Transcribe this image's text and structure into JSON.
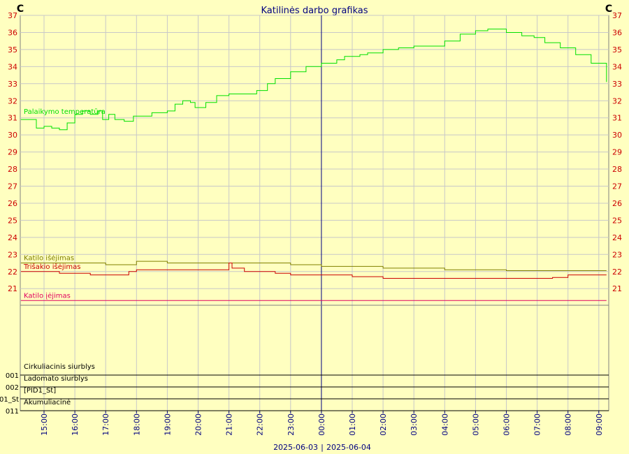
{
  "chart_data": {
    "type": "line",
    "title": "Katilinės darbo grafikas",
    "y_unit_left": "C",
    "y_unit_right": "C",
    "ylim": [
      20.2,
      37
    ],
    "y_ticks": [
      21,
      22,
      23,
      24,
      25,
      26,
      27,
      28,
      29,
      30,
      31,
      32,
      33,
      34,
      35,
      36,
      37
    ],
    "x_ticks": [
      "15:00",
      "16:00",
      "17:00",
      "18:00",
      "19:00",
      "20:00",
      "21:00",
      "22:00",
      "23:00",
      "00:00",
      "01:00",
      "02:00",
      "03:00",
      "04:00",
      "05:00",
      "06:00",
      "07:00",
      "08:00",
      "09:00"
    ],
    "x_range_hours": [
      14.25,
      33.25
    ],
    "date_left": "2025-06-03",
    "date_right": "2025-06-04",
    "grid": true,
    "series": [
      {
        "name": "Palaikymo temperatūra",
        "color": "#00e000",
        "points": [
          [
            14.25,
            30.9
          ],
          [
            14.5,
            30.9
          ],
          [
            14.75,
            30.4
          ],
          [
            15.0,
            30.5
          ],
          [
            15.25,
            30.4
          ],
          [
            15.5,
            30.3
          ],
          [
            15.75,
            30.7
          ],
          [
            16.0,
            31.2
          ],
          [
            16.25,
            31.4
          ],
          [
            16.5,
            31.2
          ],
          [
            16.75,
            31.4
          ],
          [
            16.9,
            30.9
          ],
          [
            17.1,
            31.2
          ],
          [
            17.3,
            30.9
          ],
          [
            17.6,
            30.8
          ],
          [
            17.9,
            31.1
          ],
          [
            18.25,
            31.1
          ],
          [
            18.5,
            31.3
          ],
          [
            19.0,
            31.4
          ],
          [
            19.25,
            31.8
          ],
          [
            19.5,
            32.0
          ],
          [
            19.75,
            31.9
          ],
          [
            19.9,
            31.6
          ],
          [
            20.25,
            31.9
          ],
          [
            20.6,
            32.3
          ],
          [
            21.0,
            32.4
          ],
          [
            21.5,
            32.4
          ],
          [
            21.9,
            32.6
          ],
          [
            22.25,
            33.0
          ],
          [
            22.5,
            33.3
          ],
          [
            23.0,
            33.7
          ],
          [
            23.5,
            34.0
          ],
          [
            24.0,
            34.2
          ],
          [
            24.5,
            34.4
          ],
          [
            24.75,
            34.6
          ],
          [
            25.25,
            34.7
          ],
          [
            25.5,
            34.8
          ],
          [
            26.0,
            35.0
          ],
          [
            26.5,
            35.1
          ],
          [
            27.0,
            35.2
          ],
          [
            27.5,
            35.2
          ],
          [
            28.0,
            35.5
          ],
          [
            28.5,
            35.9
          ],
          [
            29.0,
            36.1
          ],
          [
            29.4,
            36.2
          ],
          [
            29.7,
            36.2
          ],
          [
            30.0,
            36.0
          ],
          [
            30.5,
            35.8
          ],
          [
            30.9,
            35.7
          ],
          [
            31.25,
            35.4
          ],
          [
            31.75,
            35.1
          ],
          [
            32.25,
            34.7
          ],
          [
            32.75,
            34.2
          ],
          [
            33.25,
            33.5
          ],
          [
            33.6,
            33.2
          ],
          [
            33.75,
            33.1
          ]
        ]
      },
      {
        "name": "Katilo išėjimas",
        "color": "#808000",
        "points": [
          [
            14.25,
            22.5
          ],
          [
            16.0,
            22.5
          ],
          [
            17.0,
            22.4
          ],
          [
            17.5,
            22.4
          ],
          [
            18.0,
            22.6
          ],
          [
            18.5,
            22.6
          ],
          [
            19.0,
            22.5
          ],
          [
            20.0,
            22.5
          ],
          [
            21.0,
            22.5
          ],
          [
            21.5,
            22.5
          ],
          [
            23.0,
            22.4
          ],
          [
            24.0,
            22.3
          ],
          [
            26.0,
            22.2
          ],
          [
            28.0,
            22.1
          ],
          [
            30.0,
            22.05
          ],
          [
            31.0,
            22.05
          ],
          [
            32.0,
            22.05
          ],
          [
            33.75,
            22.05
          ]
        ]
      },
      {
        "name": "Trišakio išėjimas",
        "color": "#cc0000",
        "points": [
          [
            14.25,
            22.0
          ],
          [
            15.0,
            22.0
          ],
          [
            15.5,
            21.9
          ],
          [
            16.0,
            21.9
          ],
          [
            16.5,
            21.8
          ],
          [
            17.0,
            21.8
          ],
          [
            17.5,
            21.8
          ],
          [
            17.75,
            22.0
          ],
          [
            18.0,
            22.1
          ],
          [
            19.0,
            22.1
          ],
          [
            20.0,
            22.1
          ],
          [
            20.75,
            22.1
          ],
          [
            21.0,
            22.5
          ],
          [
            21.1,
            22.2
          ],
          [
            21.5,
            22.0
          ],
          [
            22.0,
            22.0
          ],
          [
            22.5,
            21.9
          ],
          [
            23.0,
            21.8
          ],
          [
            24.0,
            21.8
          ],
          [
            25.0,
            21.7
          ],
          [
            26.0,
            21.6
          ],
          [
            28.0,
            21.6
          ],
          [
            30.0,
            21.6
          ],
          [
            31.5,
            21.65
          ],
          [
            32.0,
            21.8
          ],
          [
            33.75,
            21.8
          ]
        ]
      },
      {
        "name": "Katilo įėjimas",
        "color": "#e00060",
        "points": [
          [
            14.25,
            20.3
          ],
          [
            33.75,
            20.3
          ]
        ]
      }
    ],
    "panels": [
      {
        "label": "Cirkuliacinis siurblys",
        "code": "001"
      },
      {
        "label": "Ladomato siurblys",
        "code": "002"
      },
      {
        "label": "[PID1_St]",
        "code": "01_St"
      },
      {
        "label": "Akumuliacinė",
        "code": "011"
      }
    ]
  },
  "colors": {
    "background": "#ffffc0",
    "grid": "#c8c8c8",
    "axis_text": "#000080",
    "tick_value": "#cc0000",
    "midnight_line": "#000080"
  }
}
